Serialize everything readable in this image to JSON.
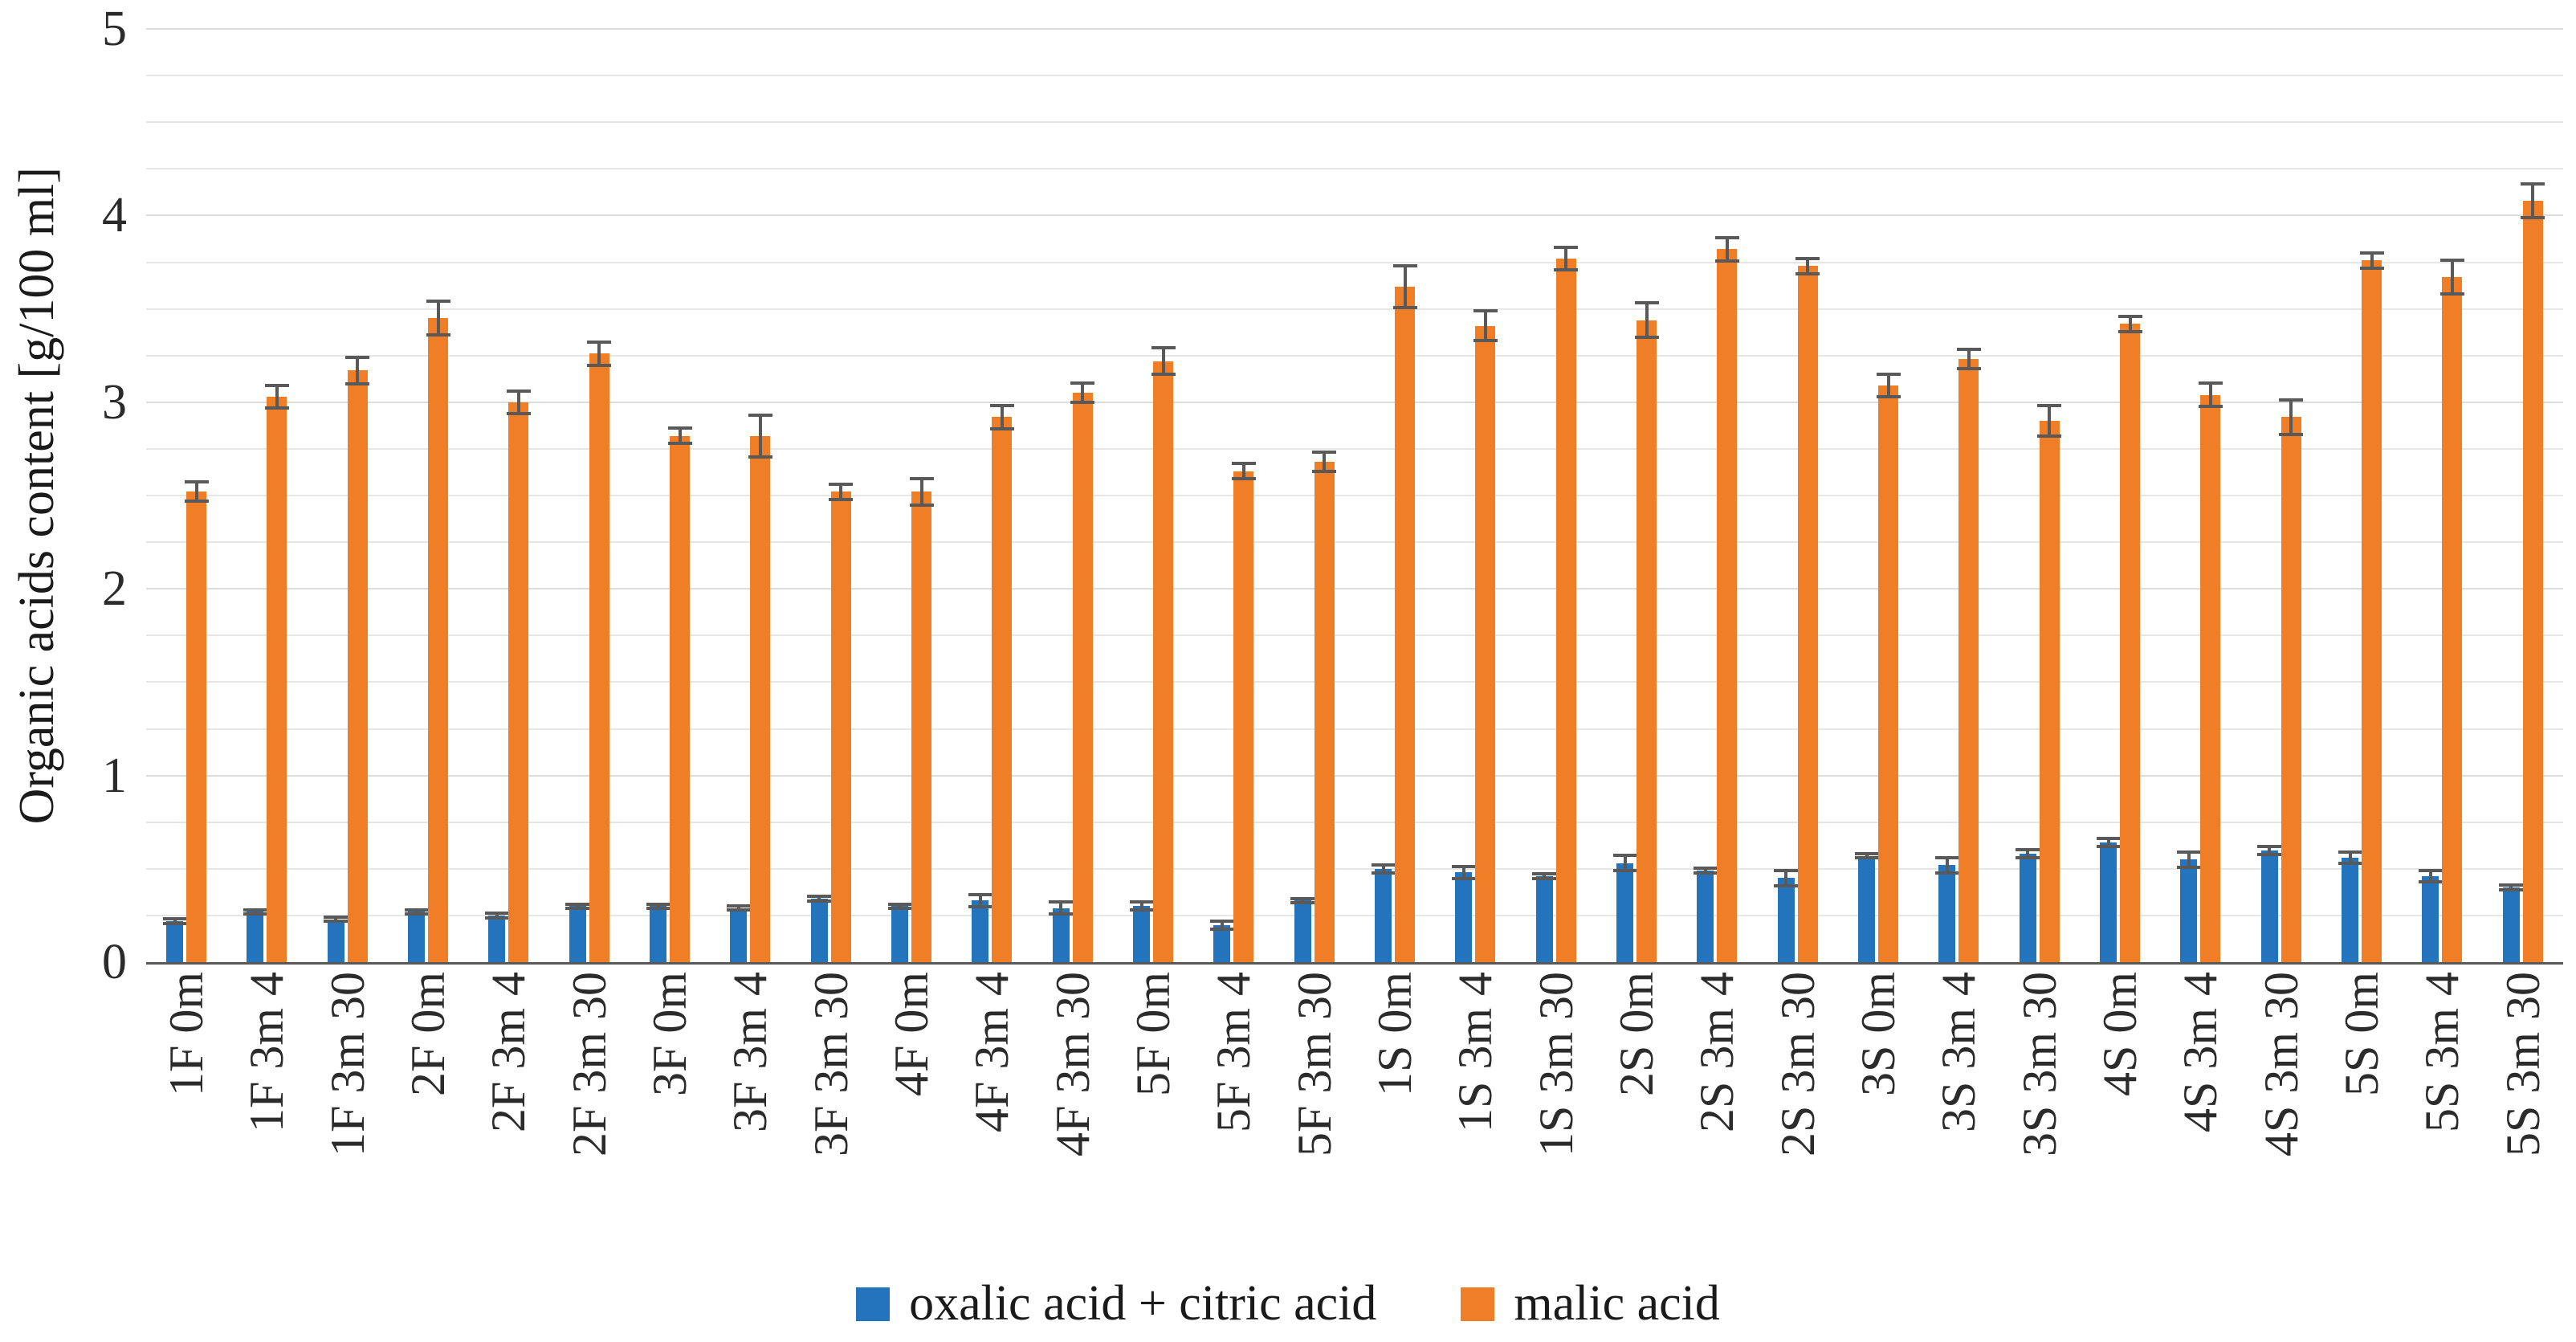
{
  "figure": {
    "background": "#ffffff"
  },
  "chart_data": {
    "type": "bar",
    "title": "",
    "xlabel": "",
    "ylabel": "Organic acids content [g/100 ml]",
    "ylim": [
      0,
      5
    ],
    "yticks": [
      0,
      1,
      2,
      3,
      4,
      5
    ],
    "minor_grid_step": 0.25,
    "grid": true,
    "legend_position": "bottom",
    "error_bars": true,
    "colors": {
      "error_bar": "#595959",
      "gridline": "#e6e6e6",
      "axis_line": "#595959"
    },
    "categories": [
      "1F 0m",
      "1F 3m 4",
      "1F 3m 30",
      "2F 0m",
      "2F 3m 4",
      "2F 3m 30",
      "3F 0m",
      "3F 3m 4",
      "3F 3m 30",
      "4F 0m",
      "4F 3m 4",
      "4F 3m 30",
      "5F 0m",
      "5F 3m 4",
      "5F 3m 30",
      "1S 0m",
      "1S 3m 4",
      "1S 3m 30",
      "2S 0m",
      "2S 3m 4",
      "2S 3m 30",
      "3S 0m",
      "3S 3m 4",
      "3S 3m 30",
      "4S 0m",
      "4S 3m 4",
      "4S 3m 30",
      "5S 0m",
      "5S 3m 4",
      "5S 3m 30"
    ],
    "series": [
      {
        "name": "oxalic acid + citric acid",
        "color": "#2374BC",
        "values": [
          0.22,
          0.27,
          0.23,
          0.27,
          0.25,
          0.3,
          0.3,
          0.29,
          0.34,
          0.3,
          0.33,
          0.29,
          0.3,
          0.2,
          0.33,
          0.5,
          0.48,
          0.46,
          0.53,
          0.49,
          0.45,
          0.57,
          0.52,
          0.58,
          0.64,
          0.55,
          0.6,
          0.56,
          0.46,
          0.4
        ],
        "errors": [
          0.02,
          0.02,
          0.02,
          0.02,
          0.02,
          0.02,
          0.02,
          0.02,
          0.02,
          0.02,
          0.04,
          0.04,
          0.03,
          0.03,
          0.02,
          0.03,
          0.04,
          0.02,
          0.05,
          0.02,
          0.05,
          0.02,
          0.05,
          0.03,
          0.03,
          0.05,
          0.03,
          0.04,
          0.04,
          0.02
        ]
      },
      {
        "name": "malic acid",
        "color": "#F07E26",
        "values": [
          2.52,
          3.03,
          3.17,
          3.45,
          3.0,
          3.26,
          2.82,
          2.82,
          2.52,
          2.52,
          2.92,
          3.05,
          3.22,
          2.63,
          2.68,
          3.62,
          3.41,
          3.77,
          3.44,
          3.82,
          3.73,
          3.09,
          3.23,
          2.9,
          3.42,
          3.04,
          2.92,
          3.76,
          3.67,
          4.08
        ],
        "errors": [
          0.06,
          0.07,
          0.08,
          0.1,
          0.07,
          0.07,
          0.05,
          0.12,
          0.05,
          0.08,
          0.07,
          0.06,
          0.08,
          0.05,
          0.06,
          0.12,
          0.09,
          0.07,
          0.1,
          0.07,
          0.05,
          0.07,
          0.06,
          0.09,
          0.05,
          0.07,
          0.1,
          0.05,
          0.1,
          0.1
        ]
      }
    ]
  }
}
